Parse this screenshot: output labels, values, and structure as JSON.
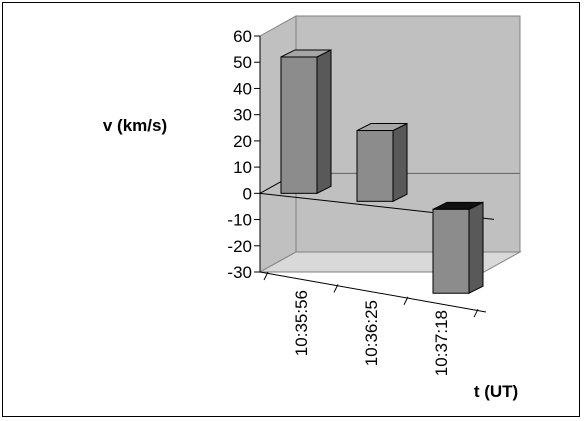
{
  "chart_data": {
    "type": "bar",
    "subtype": "3d-column",
    "categories": [
      "10:35:56",
      "10:36:25",
      "10:37:18"
    ],
    "values": [
      52,
      27,
      -32
    ],
    "title": "",
    "xlabel": "t (UT)",
    "ylabel": "v (km/s)",
    "ylim": [
      -30,
      60
    ],
    "yticks": [
      60,
      50,
      40,
      30,
      20,
      10,
      0,
      -10,
      -20,
      -30
    ],
    "grid": false,
    "legend": "none"
  },
  "colors": {
    "bar_front": "#8c8c8c",
    "bar_side": "#595959",
    "bar_top": "#a6a6a6",
    "wall": "#c0c0c0",
    "floor": "#d9d9d9"
  }
}
